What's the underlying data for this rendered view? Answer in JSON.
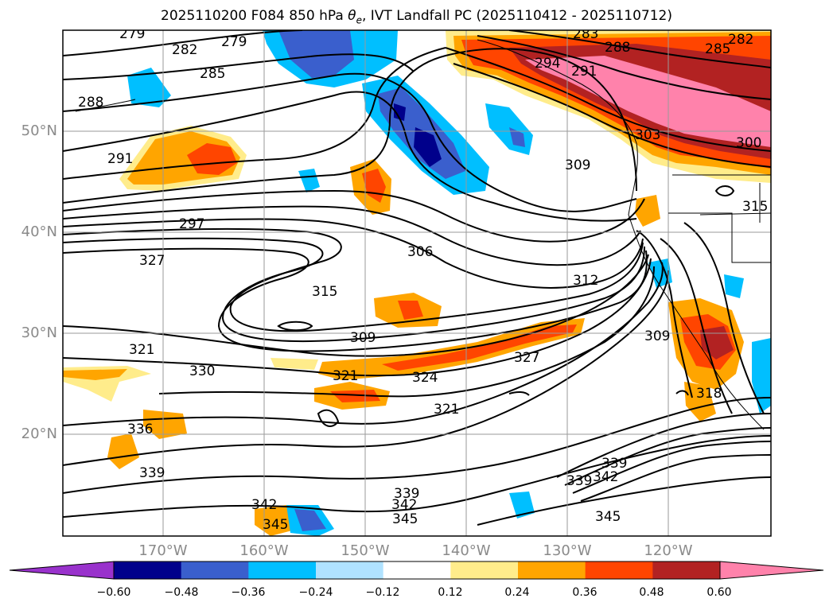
{
  "title": {
    "prefix": "2025110200 F084 850 hPa ",
    "theta": "θ",
    "theta_sub": "e",
    "suffix": ", IVT Landfall PC (2025110412 - 2025110712)"
  },
  "map": {
    "lat_labels": [
      "50°N",
      "40°N",
      "30°N",
      "20°N"
    ],
    "lon_labels": [
      "170°W",
      "160°W",
      "150°W",
      "140°W",
      "130°W",
      "120°W"
    ],
    "contour_labels": [
      "279",
      "279",
      "282",
      "285",
      "288",
      "291",
      "297",
      "327",
      "315",
      "309",
      "306",
      "309",
      "312",
      "309",
      "321",
      "330",
      "321",
      "324",
      "327",
      "321",
      "336",
      "339",
      "342",
      "339",
      "342",
      "345",
      "345",
      "345",
      "342",
      "339",
      "339",
      "283",
      "288",
      "291",
      "285",
      "282",
      "303",
      "300",
      "315",
      "318",
      "294"
    ]
  },
  "colorbar": {
    "ticks": [
      "−0.60",
      "−0.48",
      "−0.36",
      "−0.24",
      "−0.12",
      "0.12",
      "0.24",
      "0.36",
      "0.48",
      "0.60"
    ],
    "colors": [
      "#9932cc",
      "#00008b",
      "#3a5fcd",
      "#00bfff",
      "#b0e2ff",
      "#ffffff",
      "#ffec8b",
      "#ffa500",
      "#ff4500",
      "#b22222",
      "#ff82ab"
    ]
  }
}
